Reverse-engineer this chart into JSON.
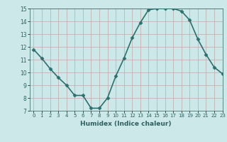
{
  "x": [
    0,
    1,
    2,
    3,
    4,
    5,
    6,
    7,
    8,
    9,
    10,
    11,
    12,
    13,
    14,
    15,
    16,
    17,
    18,
    19,
    20,
    21,
    22,
    23
  ],
  "y": [
    11.8,
    11.1,
    10.3,
    9.6,
    9.0,
    8.2,
    8.2,
    7.2,
    7.2,
    8.0,
    9.7,
    11.1,
    12.7,
    13.9,
    14.9,
    15.0,
    15.0,
    15.0,
    14.8,
    14.1,
    12.6,
    11.4,
    10.4,
    9.9
  ],
  "xlabel": "Humidex (Indice chaleur)",
  "ylim": [
    7,
    15
  ],
  "xlim": [
    -0.5,
    23
  ],
  "yticks": [
    7,
    8,
    9,
    10,
    11,
    12,
    13,
    14,
    15
  ],
  "xticks": [
    0,
    1,
    2,
    3,
    4,
    5,
    6,
    7,
    8,
    9,
    10,
    11,
    12,
    13,
    14,
    15,
    16,
    17,
    18,
    19,
    20,
    21,
    22,
    23
  ],
  "line_color": "#2d7070",
  "marker_color": "#2d7070",
  "bg_color": "#cce8e8",
  "grid_color": "#c4a8a8",
  "fig_bg": "#cce8e8",
  "tick_label_color": "#2d6060",
  "xlabel_color": "#2d6060",
  "marker": "D",
  "marker_size": 2.5,
  "line_width": 1.2
}
